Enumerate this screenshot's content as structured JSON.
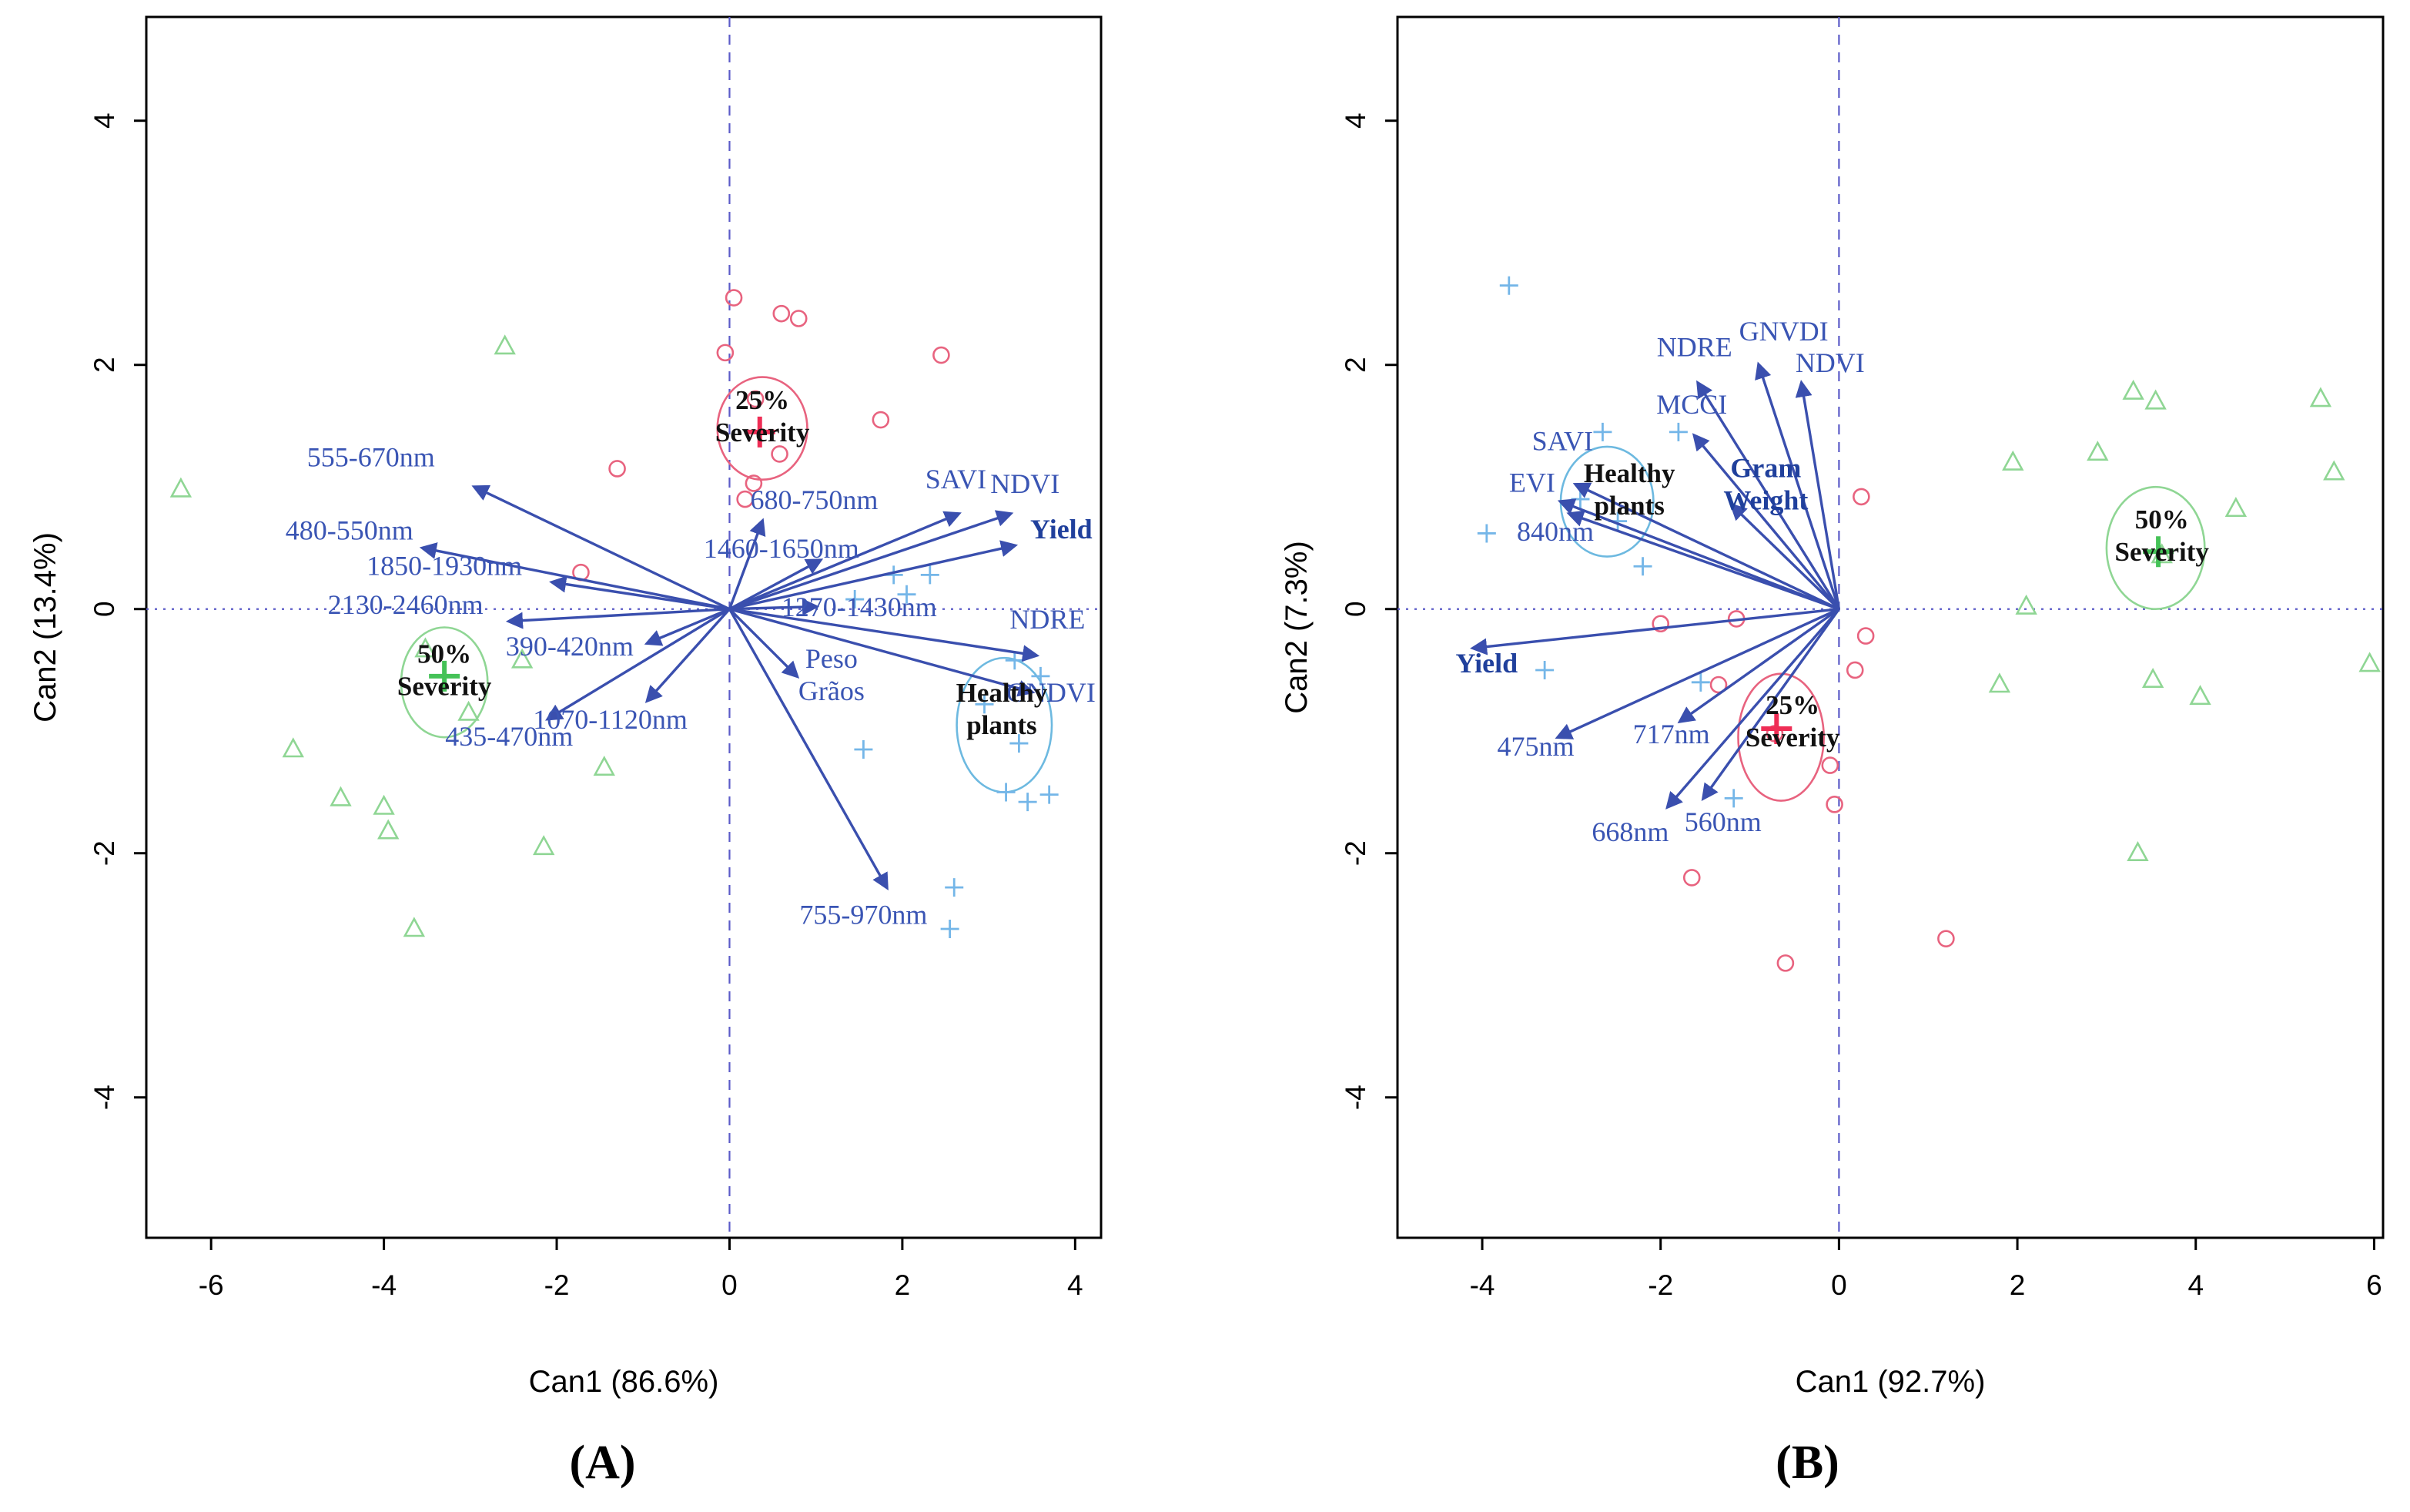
{
  "colors": {
    "vector": "#3a4fae",
    "vector_label": "#3a55b4",
    "bold_label": "#20409c",
    "guide": "#5b5bc8",
    "red_point": "#e8637f",
    "green_point": "#8fd694",
    "blue_point": "#74b6e8",
    "red_centroid": "#ef2d55",
    "green_centroid": "#45c257",
    "red_ellipse": "#e8637f",
    "green_ellipse": "#8fd694",
    "blue_ellipse": "#6db9e0"
  },
  "chart_data": [
    {
      "type": "scatter",
      "panel_label": "(A)",
      "xlabel": "Can1 (86.6%)",
      "ylabel": "Can2 (13.4%)",
      "xlim": [
        -6.75,
        4.3
      ],
      "ylim": [
        -5.15,
        4.85
      ],
      "xticks": [
        -6,
        -4,
        -2,
        0,
        2,
        4
      ],
      "yticks": [
        -4,
        -2,
        0,
        2,
        4
      ],
      "grid": false,
      "series": [
        {
          "name": "25% Severity",
          "marker": "circle",
          "color_key": "red_point",
          "points": [
            [
              0.05,
              2.55
            ],
            [
              0.6,
              2.42
            ],
            [
              0.8,
              2.38
            ],
            [
              -0.05,
              2.1
            ],
            [
              2.45,
              2.08
            ],
            [
              1.75,
              1.55
            ],
            [
              0.3,
              1.72
            ],
            [
              -1.3,
              1.15
            ],
            [
              0.28,
              1.03
            ],
            [
              0.58,
              1.27
            ],
            [
              -1.72,
              0.3
            ],
            [
              0.18,
              0.9
            ]
          ]
        },
        {
          "name": "50% Severity",
          "marker": "triangle",
          "color_key": "green_point",
          "points": [
            [
              -6.35,
              0.98
            ],
            [
              -2.6,
              2.15
            ],
            [
              -5.05,
              -1.15
            ],
            [
              -4.5,
              -1.55
            ],
            [
              -4.0,
              -1.62
            ],
            [
              -3.95,
              -1.82
            ],
            [
              -3.65,
              -2.62
            ],
            [
              -2.15,
              -1.95
            ],
            [
              -1.45,
              -1.3
            ],
            [
              -2.4,
              -0.42
            ],
            [
              -3.52,
              -0.33
            ],
            [
              -3.02,
              -0.85
            ]
          ]
        },
        {
          "name": "Healthy plants",
          "marker": "plus",
          "color_key": "blue_point",
          "points": [
            [
              1.9,
              0.28
            ],
            [
              2.32,
              0.28
            ],
            [
              2.05,
              0.12
            ],
            [
              1.45,
              0.08
            ],
            [
              3.3,
              -0.42
            ],
            [
              3.6,
              -0.55
            ],
            [
              2.95,
              -0.78
            ],
            [
              3.35,
              -1.1
            ],
            [
              3.2,
              -1.5
            ],
            [
              3.45,
              -1.58
            ],
            [
              3.7,
              -1.52
            ],
            [
              1.55,
              -1.15
            ],
            [
              2.6,
              -2.28
            ],
            [
              2.55,
              -2.62
            ]
          ]
        }
      ],
      "centroids": [
        {
          "x": 0.35,
          "y": 1.45,
          "color_key": "red_centroid"
        },
        {
          "x": -3.3,
          "y": -0.55,
          "color_key": "green_centroid"
        }
      ],
      "clusters": [
        {
          "label": "25%\nSeverity",
          "cx": 0.38,
          "cy": 1.48,
          "rx": 0.52,
          "ry": 0.42,
          "color_key": "red_ellipse",
          "lx": 0.38,
          "ly": 1.64
        },
        {
          "label": "50%\nSeverity",
          "cx": -3.3,
          "cy": -0.6,
          "rx": 0.5,
          "ry": 0.45,
          "color_key": "green_ellipse",
          "lx": -3.3,
          "ly": -0.44
        },
        {
          "label": "Healthy\nplants",
          "cx": 3.18,
          "cy": -0.95,
          "rx": 0.55,
          "ry": 0.55,
          "color_key": "blue_ellipse",
          "lx": 3.15,
          "ly": -0.76
        }
      ],
      "vectors": [
        {
          "label": "555-670nm",
          "tip": [
            -2.95,
            1.0
          ],
          "lx": -4.15,
          "ly": 1.17
        },
        {
          "label": "480-550nm",
          "tip": [
            -3.55,
            0.5
          ],
          "lx": -4.4,
          "ly": 0.57
        },
        {
          "label": "1850-1930nm",
          "tip": [
            -2.05,
            0.22
          ],
          "lx": -3.3,
          "ly": 0.28
        },
        {
          "label": "2130-2460nm",
          "tip": [
            -2.55,
            -0.1
          ],
          "lx": -3.75,
          "ly": -0.04
        },
        {
          "label": "390-420nm",
          "tip": [
            -0.95,
            -0.28
          ],
          "lx": -1.85,
          "ly": -0.38
        },
        {
          "label": "435-470nm",
          "tip": [
            -2.1,
            -0.9
          ],
          "lx": -2.55,
          "ly": -1.12
        },
        {
          "label": "1070-1120nm",
          "tip": [
            -0.95,
            -0.75
          ],
          "lx": -1.38,
          "ly": -0.98
        },
        {
          "label": "680-750nm",
          "tip": [
            0.38,
            0.72
          ],
          "lx": 0.98,
          "ly": 0.82
        },
        {
          "label": "1460-1650nm",
          "tip": [
            1.05,
            0.4
          ],
          "lx": 0.6,
          "ly": 0.42
        },
        {
          "label": "1270-1430nm",
          "tip": [
            1.0,
            0.02
          ],
          "lx": 1.5,
          "ly": -0.06
        },
        {
          "label": "SAVI",
          "tip": [
            2.65,
            0.78
          ],
          "lx": 2.62,
          "ly": 0.99
        },
        {
          "label": "NDVI",
          "tip": [
            3.25,
            0.78
          ],
          "lx": 3.42,
          "ly": 0.95
        },
        {
          "label": "Yield",
          "tip": [
            3.3,
            0.52
          ],
          "lx": 3.84,
          "ly": 0.58,
          "bold": true
        },
        {
          "label": "NDRE",
          "tip": [
            3.55,
            -0.38
          ],
          "lx": 3.68,
          "ly": -0.16
        },
        {
          "label": "GNDVI",
          "tip": [
            3.5,
            -0.68
          ],
          "lx": 3.72,
          "ly": -0.76
        },
        {
          "label": "Peso\nGrãos",
          "tip": [
            0.78,
            -0.55
          ],
          "lx": 1.18,
          "ly": -0.48
        },
        {
          "label": "755-970nm",
          "tip": [
            1.82,
            -2.28
          ],
          "lx": 1.55,
          "ly": -2.58
        }
      ]
    },
    {
      "type": "scatter",
      "panel_label": "(B)",
      "xlabel": "Can1 (92.7%)",
      "ylabel": "Can2 (7.3%)",
      "xlim": [
        -4.95,
        6.1
      ],
      "ylim": [
        -5.15,
        4.85
      ],
      "xticks": [
        -4,
        -2,
        0,
        2,
        4,
        6
      ],
      "yticks": [
        -4,
        -2,
        0,
        2,
        4
      ],
      "grid": false,
      "series": [
        {
          "name": "Healthy plants",
          "marker": "plus",
          "color_key": "blue_point",
          "points": [
            [
              -3.7,
              2.65
            ],
            [
              -3.95,
              0.62
            ],
            [
              -2.65,
              1.45
            ],
            [
              -1.8,
              1.45
            ],
            [
              -2.9,
              0.9
            ],
            [
              -2.48,
              0.72
            ],
            [
              -3.3,
              -0.5
            ],
            [
              -1.55,
              -0.6
            ],
            [
              -1.18,
              -1.55
            ],
            [
              -2.2,
              0.35
            ]
          ]
        },
        {
          "name": "25% Severity",
          "marker": "circle",
          "color_key": "red_point",
          "points": [
            [
              0.25,
              0.92
            ],
            [
              -1.15,
              -0.08
            ],
            [
              -2.0,
              -0.12
            ],
            [
              0.18,
              -0.5
            ],
            [
              -0.72,
              -1.02
            ],
            [
              -0.1,
              -1.28
            ],
            [
              -0.05,
              -1.6
            ],
            [
              -1.65,
              -2.2
            ],
            [
              -0.6,
              -2.9
            ],
            [
              1.2,
              -2.7
            ],
            [
              -1.35,
              -0.62
            ],
            [
              0.3,
              -0.22
            ]
          ]
        },
        {
          "name": "50% Severity",
          "marker": "triangle",
          "color_key": "green_point",
          "points": [
            [
              3.3,
              1.78
            ],
            [
              3.55,
              1.7
            ],
            [
              5.4,
              1.72
            ],
            [
              1.95,
              1.2
            ],
            [
              2.9,
              1.28
            ],
            [
              5.55,
              1.12
            ],
            [
              2.1,
              0.02
            ],
            [
              3.52,
              -0.58
            ],
            [
              4.05,
              -0.72
            ],
            [
              5.95,
              -0.45
            ],
            [
              3.35,
              -2.0
            ],
            [
              4.45,
              0.82
            ],
            [
              1.8,
              -0.62
            ],
            [
              3.62,
              0.44
            ]
          ]
        }
      ],
      "centroids": [
        {
          "x": -0.7,
          "y": -0.98,
          "color_key": "red_centroid"
        },
        {
          "x": 3.58,
          "y": 0.47,
          "color_key": "green_centroid"
        }
      ],
      "clusters": [
        {
          "label": "Healthy\nplants",
          "cx": -2.6,
          "cy": 0.88,
          "rx": 0.52,
          "ry": 0.45,
          "color_key": "blue_ellipse",
          "lx": -2.35,
          "ly": 1.04
        },
        {
          "label": "25%\nSeverity",
          "cx": -0.65,
          "cy": -1.05,
          "rx": 0.48,
          "ry": 0.52,
          "color_key": "red_ellipse",
          "lx": -0.52,
          "ly": -0.86
        },
        {
          "label": "50%\nSeverity",
          "cx": 3.55,
          "cy": 0.5,
          "rx": 0.55,
          "ry": 0.5,
          "color_key": "green_ellipse",
          "lx": 3.62,
          "ly": 0.66
        }
      ],
      "vectors": [
        {
          "label": "NDRE",
          "tip": [
            -1.58,
            1.85
          ],
          "lx": -1.62,
          "ly": 2.07
        },
        {
          "label": "GNVDI",
          "tip": [
            -0.9,
            2.0
          ],
          "lx": -0.62,
          "ly": 2.2
        },
        {
          "label": "NDVI",
          "tip": [
            -0.42,
            1.85
          ],
          "lx": -0.1,
          "ly": 1.94
        },
        {
          "label": "MCCI",
          "tip": [
            -1.62,
            1.42
          ],
          "lx": -1.65,
          "ly": 1.6
        },
        {
          "label": "SAVI",
          "tip": [
            -2.95,
            1.02
          ],
          "lx": -3.1,
          "ly": 1.3
        },
        {
          "label": "EVI",
          "tip": [
            -3.12,
            0.88
          ],
          "lx": -3.44,
          "ly": 0.96
        },
        {
          "label": "840nm",
          "tip": [
            -3.02,
            0.78
          ],
          "lx": -3.18,
          "ly": 0.56
        },
        {
          "label": "Gram\nWeight",
          "tip": [
            -1.2,
            0.85
          ],
          "lx": -0.82,
          "ly": 1.08,
          "bold": true
        },
        {
          "label": "Yield",
          "tip": [
            -4.1,
            -0.32
          ],
          "lx": -3.95,
          "ly": -0.52,
          "bold": true
        },
        {
          "label": "475nm",
          "tip": [
            -3.15,
            -1.05
          ],
          "lx": -3.4,
          "ly": -1.2
        },
        {
          "label": "717nm",
          "tip": [
            -1.78,
            -0.92
          ],
          "lx": -1.88,
          "ly": -1.1
        },
        {
          "label": "668nm",
          "tip": [
            -1.92,
            -1.62
          ],
          "lx": -2.34,
          "ly": -1.9
        },
        {
          "label": "560nm",
          "tip": [
            -1.52,
            -1.55
          ],
          "lx": -1.3,
          "ly": -1.82
        }
      ]
    }
  ]
}
